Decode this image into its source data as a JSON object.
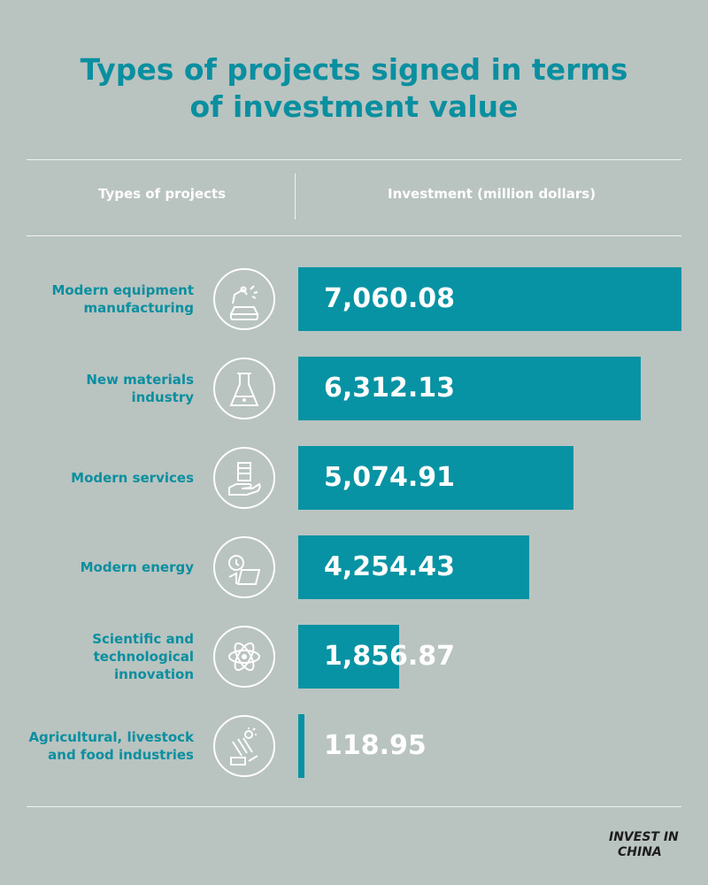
{
  "title": {
    "line1": "Types of projects signed in terms",
    "line2": "of investment value"
  },
  "header": {
    "col1": "Types of projects",
    "col2": "Investment (million dollars)"
  },
  "chart_data": {
    "type": "bar",
    "orientation": "horizontal",
    "title": "Types of projects signed in terms of investment value",
    "xlabel": "Investment (million dollars)",
    "ylabel": "Types of projects",
    "categories": [
      "Modern equipment manufacturing",
      "New materials industry",
      "Modern services",
      "Modern energy",
      "Scientific and technological innovation",
      "Agricultural, livestock and food industries"
    ],
    "values": [
      7060.08,
      6312.13,
      5074.91,
      4254.43,
      1856.87,
      118.95
    ],
    "value_labels": [
      "7,060.08",
      "6,312.13",
      "5,074.91",
      "4,254.43",
      "1,856.87",
      "118.95"
    ],
    "label_lines": [
      [
        "Modern equipment",
        "manufacturing"
      ],
      [
        "New materials",
        "industry"
      ],
      [
        "Modern services"
      ],
      [
        "Modern energy"
      ],
      [
        "Scientific and",
        "technological",
        "innovation"
      ],
      [
        "Agricultural, livestock",
        "and food industries"
      ]
    ],
    "icons": [
      "robot-arm-car-icon",
      "chemistry-flask-icon",
      "hand-building-icon",
      "energy-solar-panel-icon",
      "atom-icon",
      "crops-livestock-icon"
    ],
    "bar_color": "#0793a3",
    "grid": false,
    "legend": "none"
  },
  "logo": {
    "line1": "INVEST IN",
    "line2": "CHINA"
  },
  "colors": {
    "background": "#b9c3bf",
    "accent": "#0a8fa0",
    "bar": "#0793a3"
  }
}
